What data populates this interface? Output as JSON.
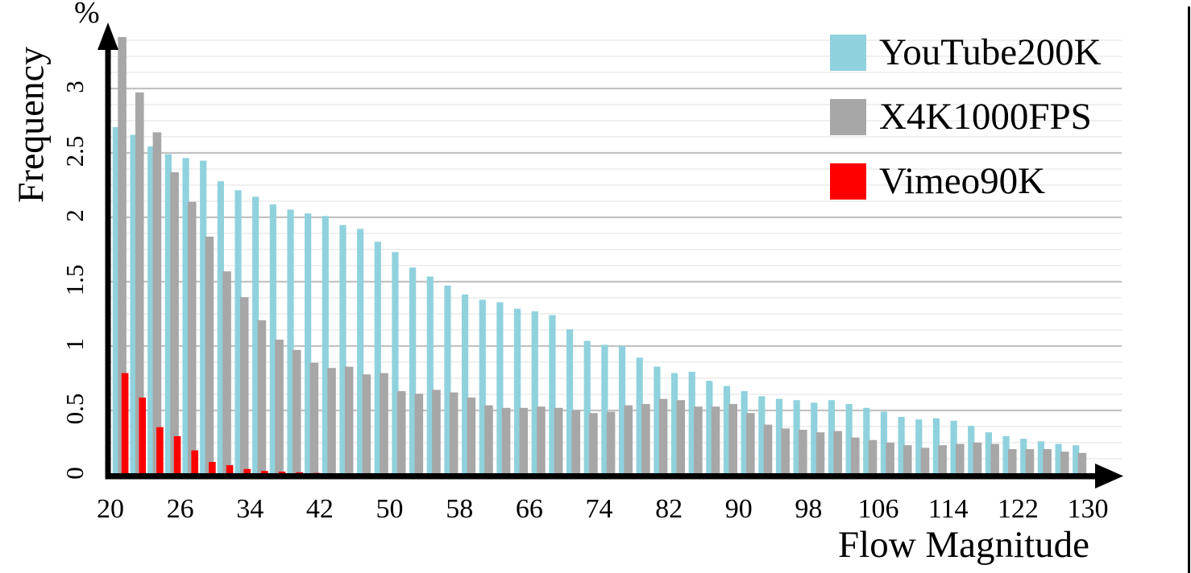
{
  "chart_data": {
    "type": "bar",
    "title": "",
    "ylabel": "Frequency",
    "y_unit_label": "%",
    "xlabel": "Flow Magnitude",
    "x_tick_labels": [
      "20",
      "26",
      "34",
      "42",
      "50",
      "58",
      "66",
      "74",
      "82",
      "90",
      "98",
      "106",
      "114",
      "122",
      "130"
    ],
    "y_tick_labels": [
      "0",
      "0.5",
      "1",
      "1.5",
      "2",
      "2.5",
      "3"
    ],
    "y_ticks": [
      0,
      0.5,
      1,
      1.5,
      2,
      2.5,
      3
    ],
    "ylim": [
      0,
      3.45
    ],
    "grid": {
      "minor_step": 0.125,
      "major_step": 0.5,
      "minor_color": "#ebebeb",
      "major_color": "#c2c2c2"
    },
    "legend_position": "top-right",
    "num_groups": 56,
    "axis_color": "#000000",
    "series": [
      {
        "name": "YouTube200K",
        "color": "#8fd2dd",
        "values": [
          2.7,
          2.64,
          2.55,
          2.49,
          2.46,
          2.44,
          2.28,
          2.21,
          2.16,
          2.1,
          2.06,
          2.03,
          2.01,
          1.94,
          1.91,
          1.81,
          1.73,
          1.61,
          1.54,
          1.47,
          1.4,
          1.36,
          1.34,
          1.29,
          1.27,
          1.24,
          1.13,
          1.04,
          1.01,
          1.0,
          0.91,
          0.84,
          0.79,
          0.8,
          0.73,
          0.69,
          0.65,
          0.61,
          0.59,
          0.58,
          0.56,
          0.58,
          0.55,
          0.52,
          0.49,
          0.45,
          0.43,
          0.44,
          0.42,
          0.38,
          0.33,
          0.3,
          0.28,
          0.26,
          0.24,
          0.23
        ]
      },
      {
        "name": "X4K1000FPS",
        "color": "#a7a7a7",
        "values": [
          3.4,
          2.97,
          2.66,
          2.35,
          2.12,
          1.85,
          1.58,
          1.38,
          1.2,
          1.05,
          0.97,
          0.87,
          0.83,
          0.84,
          0.78,
          0.79,
          0.65,
          0.63,
          0.66,
          0.64,
          0.6,
          0.54,
          0.52,
          0.52,
          0.53,
          0.52,
          0.5,
          0.48,
          0.49,
          0.54,
          0.55,
          0.59,
          0.58,
          0.53,
          0.53,
          0.55,
          0.48,
          0.39,
          0.36,
          0.35,
          0.33,
          0.34,
          0.29,
          0.27,
          0.25,
          0.23,
          0.21,
          0.23,
          0.24,
          0.25,
          0.24,
          0.2,
          0.2,
          0.2,
          0.18,
          0.17
        ]
      },
      {
        "name": "Vimeo90K",
        "color": "#ff0000",
        "values": [
          0.79,
          0.6,
          0.37,
          0.3,
          0.19,
          0.1,
          0.075,
          0.045,
          0.03,
          0.025,
          0.02,
          0.015,
          0.012,
          0.012,
          0.012,
          0.012,
          0.01,
          0.01,
          0.01,
          0.01,
          0.01,
          0.01,
          0.01,
          0.01,
          0,
          0,
          0,
          0,
          0,
          0,
          0,
          0,
          0,
          0,
          0,
          0,
          0,
          0,
          0,
          0,
          0,
          0,
          0,
          0,
          0,
          0,
          0,
          0,
          0,
          0,
          0,
          0,
          0,
          0,
          0,
          0
        ]
      }
    ]
  }
}
